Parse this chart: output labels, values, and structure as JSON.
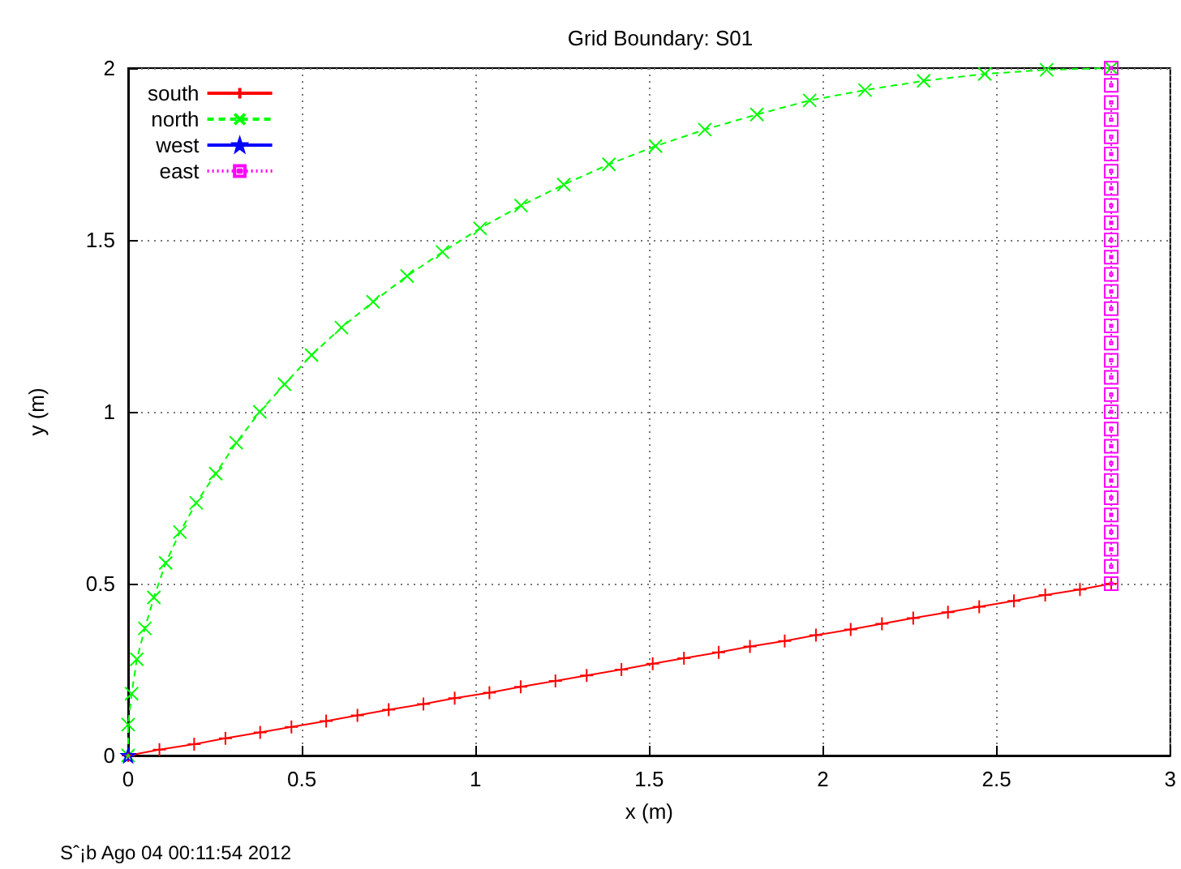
{
  "chart_data": {
    "type": "line",
    "title": "Grid Boundary: S01",
    "xlabel": "x (m)",
    "ylabel": "y (m)",
    "xlim": [
      0,
      3
    ],
    "xticks": [
      0,
      0.5,
      1,
      1.5,
      2,
      2.5,
      3
    ],
    "ylim": [
      0,
      2
    ],
    "yticks": [
      0,
      0.5,
      1,
      1.5,
      2
    ],
    "grid": true,
    "legend": "top left",
    "annotations": [
      "Sˆ¡b Ago 04 00:11:54 2012"
    ],
    "series": [
      {
        "name": "south",
        "color": "#ff0000",
        "marker": "plus",
        "line_style": "solid",
        "x": [
          0,
          0.09,
          0.19,
          0.28,
          0.38,
          0.47,
          0.57,
          0.66,
          0.75,
          0.85,
          0.94,
          1.04,
          1.13,
          1.23,
          1.32,
          1.42,
          1.51,
          1.6,
          1.7,
          1.79,
          1.89,
          1.98,
          2.08,
          2.17,
          2.26,
          2.36,
          2.45,
          2.55,
          2.64,
          2.74,
          2.83
        ],
        "values": [
          0,
          0.017,
          0.033,
          0.05,
          0.067,
          0.083,
          0.1,
          0.117,
          0.133,
          0.15,
          0.167,
          0.183,
          0.2,
          0.217,
          0.233,
          0.25,
          0.267,
          0.283,
          0.3,
          0.317,
          0.333,
          0.35,
          0.367,
          0.383,
          0.4,
          0.417,
          0.433,
          0.45,
          0.467,
          0.483,
          0.5
        ]
      },
      {
        "name": "north",
        "color": "#00ff00",
        "marker": "cross",
        "line_style": "dashed",
        "x": [
          0,
          0,
          0.01,
          0.025,
          0.048,
          0.074,
          0.108,
          0.149,
          0.196,
          0.252,
          0.311,
          0.379,
          0.45,
          0.528,
          0.614,
          0.705,
          0.803,
          0.905,
          1.013,
          1.131,
          1.254,
          1.384,
          1.518,
          1.66,
          1.81,
          1.962,
          2.121,
          2.29,
          2.466,
          2.644,
          2.83
        ],
        "values": [
          0,
          0.09,
          0.18,
          0.28,
          0.37,
          0.46,
          0.56,
          0.65,
          0.735,
          0.82,
          0.91,
          1.0,
          1.08,
          1.165,
          1.245,
          1.32,
          1.395,
          1.465,
          1.534,
          1.6,
          1.661,
          1.72,
          1.773,
          1.821,
          1.865,
          1.906,
          1.936,
          1.963,
          1.983,
          1.995,
          2.0
        ]
      },
      {
        "name": "west",
        "color": "#0000ff",
        "marker": "star",
        "x": [
          0
        ],
        "values": [
          0
        ]
      },
      {
        "name": "east",
        "color": "#ff00ff",
        "marker": "square",
        "line_style": "dotted",
        "x": [
          2.83,
          2.83,
          2.83,
          2.83,
          2.83,
          2.83,
          2.83,
          2.83,
          2.83,
          2.83,
          2.83,
          2.83,
          2.83,
          2.83,
          2.83,
          2.83,
          2.83,
          2.83,
          2.83,
          2.83,
          2.83,
          2.83,
          2.83,
          2.83,
          2.83,
          2.83,
          2.83,
          2.83,
          2.83,
          2.83,
          2.83
        ],
        "values": [
          0.5,
          0.55,
          0.6,
          0.65,
          0.7,
          0.75,
          0.8,
          0.85,
          0.9,
          0.95,
          1.0,
          1.05,
          1.1,
          1.15,
          1.2,
          1.25,
          1.3,
          1.35,
          1.4,
          1.45,
          1.5,
          1.55,
          1.6,
          1.65,
          1.7,
          1.75,
          1.8,
          1.85,
          1.9,
          1.95,
          2.0
        ]
      }
    ]
  }
}
